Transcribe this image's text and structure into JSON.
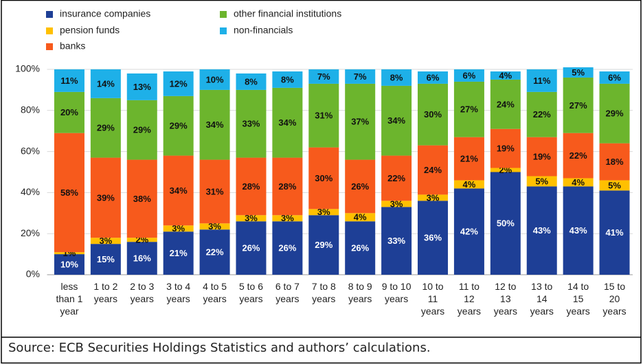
{
  "chart_data": {
    "type": "stacked_bar",
    "categories": [
      "less\nthan 1\nyear",
      "1 to 2\nyears",
      "2 to 3\nyears",
      "3 to 4\nyears",
      "4 to 5\nyears",
      "5 to 6\nyears",
      "6 to 7\nyears",
      "7 to 8\nyears",
      "8 to 9\nyears",
      "9 to 10\nyears",
      "10 to\n11\nyears",
      "11 to\n12\nyears",
      "12 to\n13\nyears",
      "13 to\n14\nyears",
      "14 to\n15\nyears",
      "15 to\n20\nyears"
    ],
    "series": [
      {
        "name": "insurance companies",
        "color": "#1e3f96",
        "values": [
          10,
          15,
          16,
          21,
          22,
          26,
          26,
          29,
          26,
          33,
          36,
          42,
          50,
          43,
          43,
          41
        ],
        "value_labels": [
          "10%",
          "15%",
          "16%",
          "21%",
          "22%",
          "26%",
          "26%",
          "29%",
          "26%",
          "33%",
          "36%",
          "42%",
          "50%",
          "43%",
          "43%",
          "41%"
        ]
      },
      {
        "name": "pension funds",
        "color": "#ffc000",
        "values": [
          1,
          3,
          2,
          3,
          3,
          3,
          3,
          3,
          4,
          3,
          3,
          4,
          2,
          5,
          4,
          5
        ],
        "value_labels": [
          "1%",
          "3%",
          "2%",
          "3%",
          "3%",
          "3%",
          "3%",
          "3%",
          "4%",
          "3%",
          "3%",
          "4%",
          "2%",
          "5%",
          "4%",
          "5%"
        ]
      },
      {
        "name": "banks",
        "color": "#f75a1c",
        "values": [
          58,
          39,
          38,
          34,
          31,
          28,
          28,
          30,
          26,
          22,
          24,
          21,
          19,
          19,
          22,
          18
        ],
        "value_labels": [
          "58%",
          "39%",
          "38%",
          "34%",
          "31%",
          "28%",
          "28%",
          "30%",
          "26%",
          "22%",
          "24%",
          "21%",
          "19%",
          "19%",
          "22%",
          "18%"
        ]
      },
      {
        "name": "other financial institutions",
        "color": "#6cb52d",
        "values": [
          20,
          29,
          29,
          29,
          34,
          33,
          34,
          31,
          37,
          34,
          30,
          27,
          24,
          22,
          27,
          29
        ],
        "value_labels": [
          "20%",
          "29%",
          "29%",
          "29%",
          "34%",
          "33%",
          "34%",
          "31%",
          "37%",
          "34%",
          "30%",
          "27%",
          "24%",
          "22%",
          "27%",
          "29%"
        ]
      },
      {
        "name": "non-financials",
        "color": "#1eb0e8",
        "values": [
          11,
          14,
          13,
          12,
          10,
          8,
          8,
          7,
          7,
          8,
          6,
          6,
          4,
          11,
          5,
          6
        ],
        "value_labels": [
          "11%",
          "14%",
          "13%",
          "12%",
          "10%",
          "8%",
          "8%",
          "7%",
          "7%",
          "8%",
          "6%",
          "6%",
          "4%",
          "11%",
          "5%",
          "6%"
        ]
      }
    ],
    "ylim": [
      0,
      100
    ],
    "yticks": [
      {
        "value": 0,
        "label": "0%"
      },
      {
        "value": 20,
        "label": "20%"
      },
      {
        "value": 40,
        "label": "40%"
      },
      {
        "value": 60,
        "label": "60%"
      },
      {
        "value": 80,
        "label": "80%"
      },
      {
        "value": 100,
        "label": "100%"
      }
    ],
    "grid": true,
    "legend": "top"
  },
  "source": "Source: ECB Securities Holdings Statistics and authors’ calculations."
}
